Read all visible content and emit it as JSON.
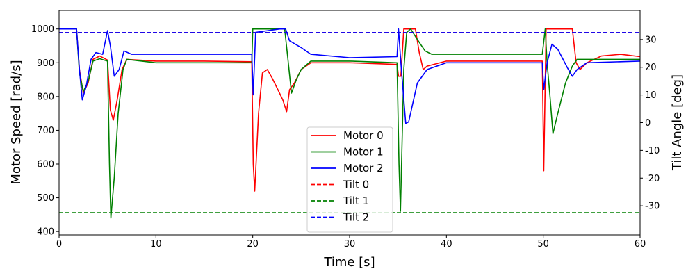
{
  "chart_data": {
    "type": "line",
    "xlabel": "Time [s]",
    "ylabel_left": "Motor Speed [rad/s]",
    "ylabel_right": "Tilt Angle [deg]",
    "xlim": [
      0,
      60
    ],
    "ylim_left": [
      390,
      1055
    ],
    "ylim_right": [
      -40.5,
      40.5
    ],
    "x_ticks": [
      0,
      10,
      20,
      30,
      40,
      50,
      60
    ],
    "y_left_ticks": [
      400,
      500,
      600,
      700,
      800,
      900,
      1000
    ],
    "y_right_ticks": [
      -30,
      -20,
      -10,
      0,
      10,
      20,
      30
    ],
    "grid": false,
    "legend_position": "bottom-center",
    "series": [
      {
        "name": "Motor 0",
        "axis": "left",
        "style": "solid",
        "color": "#ff0000",
        "points": [
          [
            0,
            1000
          ],
          [
            1.8,
            1000
          ],
          [
            2.1,
            880
          ],
          [
            2.5,
            810
          ],
          [
            3,
            840
          ],
          [
            3.5,
            910
          ],
          [
            4.2,
            920
          ],
          [
            5,
            908
          ],
          [
            5.3,
            760
          ],
          [
            5.6,
            730
          ],
          [
            6,
            790
          ],
          [
            6.5,
            880
          ],
          [
            7,
            910
          ],
          [
            10,
            905
          ],
          [
            15,
            905
          ],
          [
            19.9,
            903
          ],
          [
            20.05,
            600
          ],
          [
            20.2,
            520
          ],
          [
            20.6,
            750
          ],
          [
            21,
            870
          ],
          [
            21.5,
            880
          ],
          [
            22,
            855
          ],
          [
            22.6,
            820
          ],
          [
            23.1,
            790
          ],
          [
            23.5,
            755
          ],
          [
            23.8,
            820
          ],
          [
            24.3,
            840
          ],
          [
            25,
            880
          ],
          [
            26,
            900
          ],
          [
            30,
            900
          ],
          [
            34.9,
            895
          ],
          [
            35.05,
            860
          ],
          [
            35.3,
            860
          ],
          [
            35.6,
            1000
          ],
          [
            36.8,
            1000
          ],
          [
            37.2,
            930
          ],
          [
            37.6,
            880
          ],
          [
            38,
            890
          ],
          [
            40,
            905
          ],
          [
            45,
            905
          ],
          [
            49.9,
            905
          ],
          [
            50.05,
            580
          ],
          [
            50.3,
            1000
          ],
          [
            53,
            1000
          ],
          [
            53.4,
            900
          ],
          [
            53.8,
            880
          ],
          [
            54.5,
            900
          ],
          [
            56,
            920
          ],
          [
            58,
            925
          ],
          [
            60,
            918
          ]
        ]
      },
      {
        "name": "Motor 1",
        "axis": "left",
        "style": "solid",
        "color": "#008000",
        "points": [
          [
            0,
            1000
          ],
          [
            1.8,
            1000
          ],
          [
            2.1,
            870
          ],
          [
            2.5,
            815
          ],
          [
            3,
            845
          ],
          [
            3.5,
            905
          ],
          [
            4.2,
            912
          ],
          [
            5,
            905
          ],
          [
            5.2,
            600
          ],
          [
            5.35,
            440
          ],
          [
            5.7,
            560
          ],
          [
            6.1,
            750
          ],
          [
            6.6,
            880
          ],
          [
            7,
            910
          ],
          [
            10,
            900
          ],
          [
            15,
            900
          ],
          [
            19.9,
            900
          ],
          [
            20,
            1000
          ],
          [
            23.3,
            1000
          ],
          [
            23.6,
            920
          ],
          [
            24,
            810
          ],
          [
            24.5,
            850
          ],
          [
            25,
            880
          ],
          [
            26,
            905
          ],
          [
            30,
            905
          ],
          [
            34.9,
            900
          ],
          [
            35.1,
            600
          ],
          [
            35.25,
            460
          ],
          [
            35.6,
            880
          ],
          [
            35.9,
            990
          ],
          [
            36.3,
            1000
          ],
          [
            37.2,
            960
          ],
          [
            37.8,
            935
          ],
          [
            38.5,
            925
          ],
          [
            40,
            925
          ],
          [
            45,
            925
          ],
          [
            49.9,
            925
          ],
          [
            50.2,
            1000
          ],
          [
            50.4,
            900
          ],
          [
            50.7,
            800
          ],
          [
            51,
            690
          ],
          [
            51.5,
            750
          ],
          [
            52.3,
            840
          ],
          [
            53,
            890
          ],
          [
            53.5,
            910
          ],
          [
            60,
            910
          ]
        ]
      },
      {
        "name": "Motor 2",
        "axis": "left",
        "style": "solid",
        "color": "#0000ff",
        "points": [
          [
            0,
            1000
          ],
          [
            1.8,
            1000
          ],
          [
            2.1,
            880
          ],
          [
            2.4,
            790
          ],
          [
            2.8,
            830
          ],
          [
            3.3,
            910
          ],
          [
            3.8,
            930
          ],
          [
            4.5,
            925
          ],
          [
            5,
            995
          ],
          [
            5.3,
            950
          ],
          [
            5.7,
            860
          ],
          [
            6.2,
            880
          ],
          [
            6.7,
            935
          ],
          [
            7.5,
            925
          ],
          [
            10,
            925
          ],
          [
            15,
            925
          ],
          [
            19.9,
            925
          ],
          [
            20.05,
            805
          ],
          [
            20.3,
            990
          ],
          [
            22.8,
            1000
          ],
          [
            23.4,
            1000
          ],
          [
            23.8,
            965
          ],
          [
            25,
            945
          ],
          [
            26,
            925
          ],
          [
            30,
            915
          ],
          [
            34.9,
            918
          ],
          [
            35.05,
            1000
          ],
          [
            35.3,
            900
          ],
          [
            35.8,
            720
          ],
          [
            36.1,
            725
          ],
          [
            37,
            840
          ],
          [
            38,
            880
          ],
          [
            40,
            900
          ],
          [
            45,
            900
          ],
          [
            49.9,
            900
          ],
          [
            50.05,
            820
          ],
          [
            50.4,
            900
          ],
          [
            50.9,
            955
          ],
          [
            51.5,
            940
          ],
          [
            52.5,
            885
          ],
          [
            53,
            860
          ],
          [
            53.5,
            880
          ],
          [
            54.5,
            900
          ],
          [
            60,
            905
          ]
        ]
      },
      {
        "name": "Tilt 0",
        "axis": "right",
        "style": "dashed",
        "color": "#ff0000",
        "points": [
          [
            0,
            32.5
          ],
          [
            60,
            32.5
          ]
        ]
      },
      {
        "name": "Tilt 1",
        "axis": "right",
        "style": "dashed",
        "color": "#008000",
        "points": [
          [
            0,
            -32.5
          ],
          [
            60,
            -32.5
          ]
        ]
      },
      {
        "name": "Tilt 2",
        "axis": "right",
        "style": "dashed",
        "color": "#0000ff",
        "points": [
          [
            0,
            32.5
          ],
          [
            60,
            32.5
          ]
        ]
      }
    ]
  }
}
